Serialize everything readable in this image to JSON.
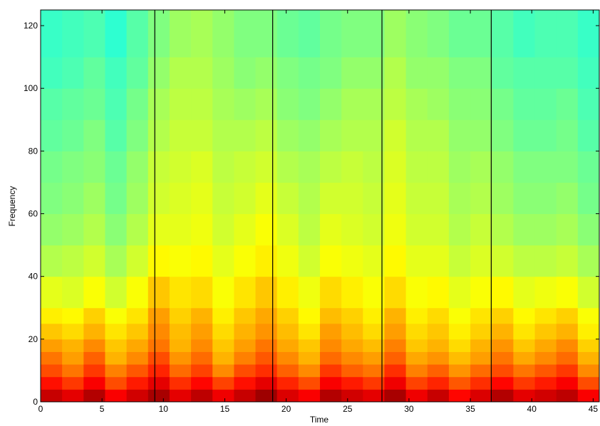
{
  "chart_data": {
    "type": "heatmap",
    "colormap": "jet",
    "clim": [
      0,
      1
    ],
    "x_label": "Time",
    "y_label": "Frequency",
    "xlim": [
      0,
      45.5
    ],
    "ylim": [
      0,
      125
    ],
    "xticks": [
      0,
      5,
      10,
      15,
      20,
      25,
      30,
      35,
      40,
      45
    ],
    "yticks": [
      0,
      20,
      40,
      60,
      80,
      100,
      120
    ],
    "xbins": [
      0,
      1.75,
      3.5,
      5.25,
      7,
      8.75,
      10.5,
      12.25,
      14,
      15.75,
      17.5,
      19.25,
      21,
      22.75,
      24.5,
      26.25,
      28,
      29.75,
      31.5,
      33.25,
      35,
      36.75,
      38.5,
      40.25,
      42,
      43.75,
      45.5
    ],
    "ybins": [
      0,
      4,
      8,
      12,
      16,
      20,
      25,
      30,
      40,
      50,
      60,
      70,
      80,
      90,
      100,
      110,
      125
    ],
    "vlines": [
      9.3,
      18.9,
      27.8,
      36.7
    ],
    "values": [
      [
        0.93,
        0.9,
        0.95,
        0.88,
        0.92,
        0.96,
        0.9,
        0.94,
        0.89,
        0.93,
        0.97,
        0.91,
        0.88,
        0.95,
        0.92,
        0.9,
        0.96,
        0.89,
        0.93,
        0.87,
        0.91,
        0.95,
        0.9,
        0.92,
        0.94,
        0.88
      ],
      [
        0.86,
        0.82,
        0.88,
        0.8,
        0.85,
        0.9,
        0.83,
        0.87,
        0.81,
        0.86,
        0.9,
        0.84,
        0.8,
        0.88,
        0.85,
        0.82,
        0.89,
        0.81,
        0.84,
        0.79,
        0.83,
        0.87,
        0.82,
        0.85,
        0.88,
        0.8
      ],
      [
        0.8,
        0.76,
        0.82,
        0.75,
        0.79,
        0.84,
        0.77,
        0.81,
        0.74,
        0.8,
        0.83,
        0.78,
        0.74,
        0.82,
        0.78,
        0.76,
        0.83,
        0.75,
        0.78,
        0.73,
        0.77,
        0.8,
        0.76,
        0.79,
        0.82,
        0.74
      ],
      [
        0.76,
        0.72,
        0.78,
        0.7,
        0.74,
        0.8,
        0.73,
        0.77,
        0.7,
        0.75,
        0.79,
        0.74,
        0.7,
        0.77,
        0.74,
        0.72,
        0.78,
        0.71,
        0.73,
        0.69,
        0.72,
        0.76,
        0.71,
        0.74,
        0.77,
        0.7
      ],
      [
        0.72,
        0.7,
        0.74,
        0.68,
        0.71,
        0.76,
        0.7,
        0.74,
        0.68,
        0.72,
        0.76,
        0.71,
        0.68,
        0.74,
        0.71,
        0.69,
        0.75,
        0.68,
        0.7,
        0.66,
        0.7,
        0.73,
        0.68,
        0.71,
        0.74,
        0.67
      ],
      [
        0.68,
        0.66,
        0.7,
        0.65,
        0.68,
        0.74,
        0.69,
        0.72,
        0.66,
        0.7,
        0.73,
        0.69,
        0.65,
        0.72,
        0.69,
        0.66,
        0.72,
        0.66,
        0.68,
        0.64,
        0.67,
        0.7,
        0.65,
        0.68,
        0.7,
        0.64
      ],
      [
        0.64,
        0.63,
        0.67,
        0.62,
        0.65,
        0.72,
        0.67,
        0.7,
        0.64,
        0.68,
        0.71,
        0.67,
        0.63,
        0.69,
        0.67,
        0.64,
        0.7,
        0.64,
        0.66,
        0.62,
        0.65,
        0.67,
        0.63,
        0.65,
        0.67,
        0.62
      ],
      [
        0.6,
        0.59,
        0.62,
        0.58,
        0.62,
        0.68,
        0.65,
        0.66,
        0.62,
        0.65,
        0.68,
        0.64,
        0.61,
        0.66,
        0.64,
        0.62,
        0.66,
        0.62,
        0.63,
        0.6,
        0.62,
        0.63,
        0.6,
        0.61,
        0.62,
        0.58
      ],
      [
        0.55,
        0.56,
        0.58,
        0.54,
        0.58,
        0.63,
        0.62,
        0.63,
        0.6,
        0.62,
        0.64,
        0.61,
        0.58,
        0.62,
        0.61,
        0.6,
        0.63,
        0.6,
        0.6,
        0.57,
        0.59,
        0.58,
        0.56,
        0.56,
        0.57,
        0.54
      ],
      [
        0.52,
        0.53,
        0.55,
        0.51,
        0.55,
        0.6,
        0.6,
        0.61,
        0.58,
        0.6,
        0.62,
        0.59,
        0.56,
        0.6,
        0.59,
        0.58,
        0.61,
        0.58,
        0.58,
        0.55,
        0.57,
        0.55,
        0.53,
        0.53,
        0.54,
        0.51
      ],
      [
        0.5,
        0.51,
        0.53,
        0.49,
        0.53,
        0.58,
        0.59,
        0.6,
        0.57,
        0.58,
        0.6,
        0.57,
        0.55,
        0.58,
        0.58,
        0.57,
        0.6,
        0.57,
        0.57,
        0.54,
        0.55,
        0.53,
        0.51,
        0.51,
        0.52,
        0.49
      ],
      [
        0.49,
        0.5,
        0.51,
        0.48,
        0.52,
        0.57,
        0.58,
        0.59,
        0.56,
        0.57,
        0.58,
        0.55,
        0.54,
        0.56,
        0.57,
        0.56,
        0.59,
        0.56,
        0.56,
        0.53,
        0.54,
        0.52,
        0.5,
        0.5,
        0.5,
        0.48
      ],
      [
        0.47,
        0.48,
        0.5,
        0.46,
        0.5,
        0.55,
        0.57,
        0.57,
        0.55,
        0.55,
        0.56,
        0.53,
        0.52,
        0.54,
        0.55,
        0.55,
        0.58,
        0.55,
        0.55,
        0.52,
        0.52,
        0.5,
        0.48,
        0.48,
        0.49,
        0.46
      ],
      [
        0.46,
        0.47,
        0.48,
        0.45,
        0.49,
        0.54,
        0.56,
        0.56,
        0.54,
        0.53,
        0.54,
        0.51,
        0.5,
        0.52,
        0.54,
        0.54,
        0.56,
        0.54,
        0.53,
        0.51,
        0.51,
        0.49,
        0.47,
        0.47,
        0.48,
        0.45
      ],
      [
        0.44,
        0.45,
        0.47,
        0.44,
        0.47,
        0.52,
        0.55,
        0.55,
        0.53,
        0.51,
        0.52,
        0.5,
        0.49,
        0.5,
        0.52,
        0.52,
        0.55,
        0.52,
        0.52,
        0.5,
        0.5,
        0.47,
        0.46,
        0.46,
        0.46,
        0.44
      ],
      [
        0.43,
        0.44,
        0.45,
        0.42,
        0.46,
        0.5,
        0.53,
        0.54,
        0.52,
        0.5,
        0.5,
        0.48,
        0.47,
        0.49,
        0.5,
        0.5,
        0.53,
        0.51,
        0.5,
        0.48,
        0.48,
        0.46,
        0.44,
        0.45,
        0.45,
        0.43
      ]
    ]
  }
}
